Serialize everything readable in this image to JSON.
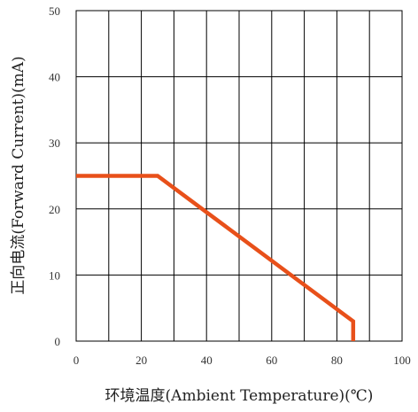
{
  "chart_data": {
    "type": "line",
    "title": "",
    "xlabel": "环境温度(Ambient Temperature)(℃)",
    "ylabel": "正向电流(Forward Current)(mA)",
    "xlim": [
      0,
      100
    ],
    "ylim": [
      0,
      50
    ],
    "x_ticks": [
      "0",
      "20",
      "40",
      "60",
      "80",
      "100"
    ],
    "y_ticks": [
      "0",
      "10",
      "20",
      "30",
      "40",
      "50"
    ],
    "grid": true,
    "series": [
      {
        "name": "",
        "color": "#e8501a",
        "x": [
          0,
          25,
          85,
          85
        ],
        "y": [
          25,
          25,
          3,
          0
        ]
      }
    ]
  }
}
